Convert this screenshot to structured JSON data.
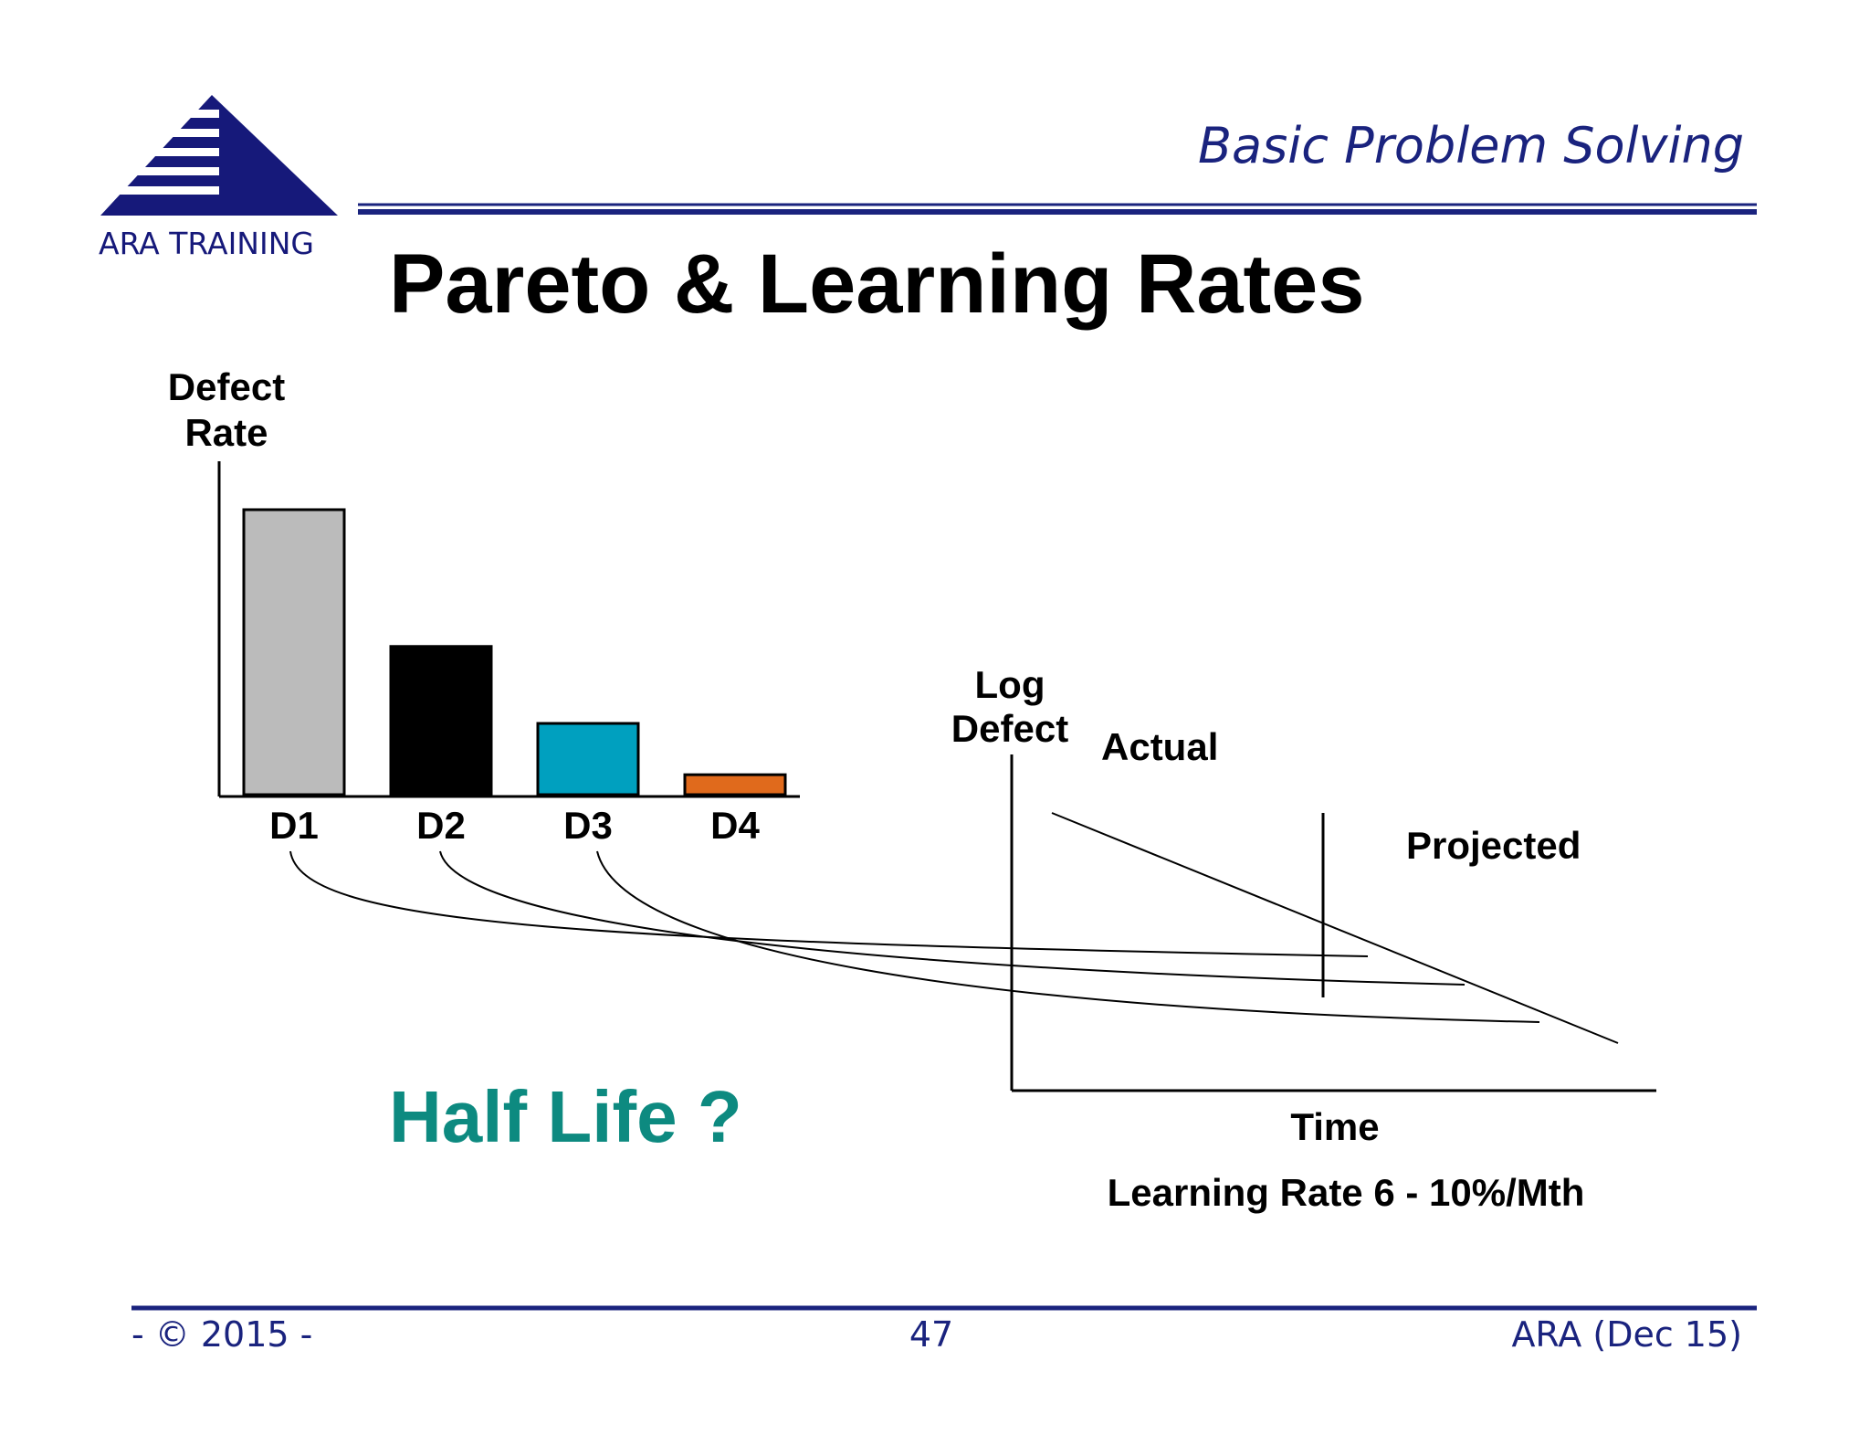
{
  "header": {
    "logo_text": "ARA TRAINING",
    "section_title": "Basic Problem Solving",
    "title": "Pareto & Learning Rates"
  },
  "pareto": {
    "ylabel": [
      "Defect",
      "Rate"
    ],
    "bars": [
      {
        "label": "D1",
        "value": 100,
        "color": "#bbbbbb"
      },
      {
        "label": "D2",
        "value": 52,
        "color": "#000000"
      },
      {
        "label": "D3",
        "value": 25,
        "color": "#00a0bf"
      },
      {
        "label": "D4",
        "value": 7,
        "color": "#e06a1c"
      }
    ]
  },
  "learning": {
    "ylabel": [
      "Log",
      "Defect"
    ],
    "actual_label": "Actual",
    "projected_label": "Projected",
    "xlabel": "Time",
    "caption": "Learning Rate 6 - 10%/Mth"
  },
  "half_life": "Half Life ?",
  "footer": {
    "left": "- © 2015 -",
    "center": "47",
    "right": "ARA (Dec 15)"
  },
  "colors": {
    "navy": "#1a237e",
    "teal": "#0d8a80",
    "ink": "#000000"
  }
}
